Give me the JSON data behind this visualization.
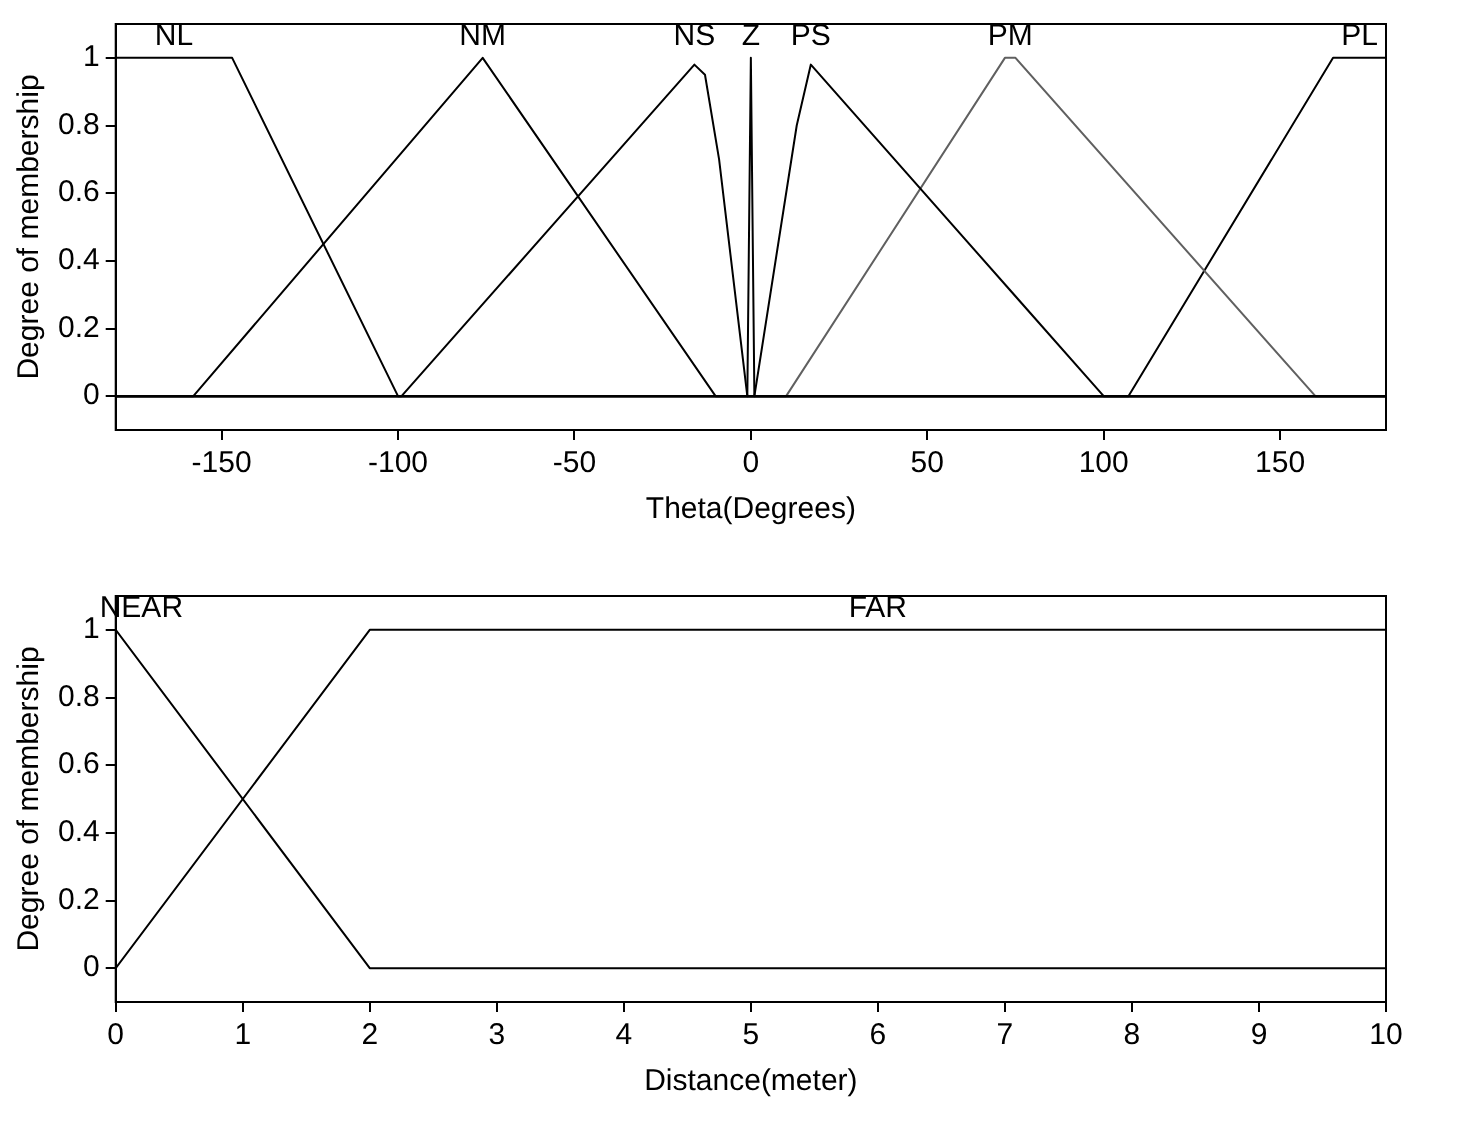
{
  "chart_data": [
    {
      "type": "line",
      "xlabel": "Theta(Degrees)",
      "ylabel": "Degree of membership",
      "xlim": [
        -180,
        180
      ],
      "xticks": [
        -150,
        -100,
        -50,
        0,
        50,
        100,
        150
      ],
      "ylim": [
        -0.1,
        1.1
      ],
      "yticks": [
        0,
        0.2,
        0.4,
        0.6,
        0.8,
        1
      ],
      "grid": false,
      "legend": false,
      "marker": "none",
      "line_style": "solid",
      "series": [
        {
          "name": "NL",
          "color": "#000000",
          "x": [
            -180,
            -147,
            -100,
            180
          ],
          "values": [
            1,
            1,
            0,
            0
          ]
        },
        {
          "name": "NM",
          "color": "#000000",
          "x": [
            -180,
            -158,
            -76,
            -10,
            180
          ],
          "values": [
            0,
            0,
            1,
            0,
            0
          ]
        },
        {
          "name": "NS",
          "color": "#000000",
          "x": [
            -180,
            -99,
            -16,
            -13,
            -9,
            -1,
            180
          ],
          "values": [
            0,
            0,
            0.98,
            0.95,
            0.7,
            0,
            0
          ]
        },
        {
          "name": "Z",
          "color": "#000000",
          "x": [
            -180,
            -1,
            0,
            1,
            180
          ],
          "values": [
            0,
            0,
            1,
            0,
            0
          ]
        },
        {
          "name": "PS",
          "color": "#000000",
          "x": [
            -180,
            1,
            13,
            17,
            100,
            180
          ],
          "values": [
            0,
            0,
            0.8,
            0.98,
            0,
            0
          ]
        },
        {
          "name": "PM",
          "color": "#606060",
          "x": [
            -180,
            10,
            72,
            75,
            160,
            180
          ],
          "values": [
            0,
            0,
            1,
            1,
            0,
            0
          ]
        },
        {
          "name": "PL",
          "color": "#000000",
          "x": [
            -180,
            107,
            165,
            180
          ],
          "values": [
            0,
            0,
            1,
            1
          ]
        }
      ]
    },
    {
      "type": "line",
      "xlabel": "Distance(meter)",
      "ylabel": "Degree of membership",
      "xlim": [
        0,
        10
      ],
      "xticks": [
        0,
        1,
        2,
        3,
        4,
        5,
        6,
        7,
        8,
        9,
        10
      ],
      "ylim": [
        -0.1,
        1.1
      ],
      "yticks": [
        0,
        0.2,
        0.4,
        0.6,
        0.8,
        1
      ],
      "grid": false,
      "legend": false,
      "marker": "none",
      "line_style": "solid",
      "series": [
        {
          "name": "NEAR",
          "color": "#000000",
          "x": [
            0,
            2,
            10
          ],
          "values": [
            1,
            0,
            0
          ]
        },
        {
          "name": "FAR",
          "color": "#000000",
          "x": [
            0,
            2,
            10
          ],
          "values": [
            0,
            1,
            1
          ]
        }
      ]
    }
  ]
}
